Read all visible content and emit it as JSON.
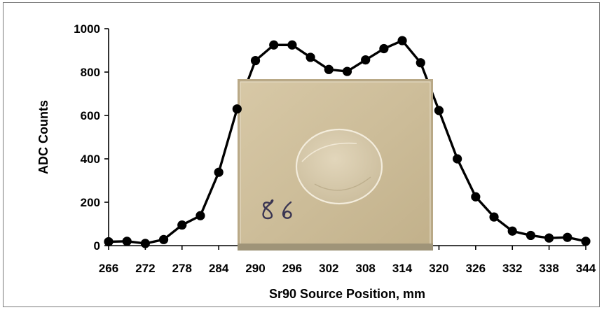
{
  "chart_data": {
    "type": "line",
    "xlabel": "Sr90 Source Position, mm",
    "ylabel": "ADC Counts",
    "xlim": [
      266,
      344
    ],
    "ylim": [
      0,
      1000
    ],
    "x_ticks": [
      266,
      272,
      278,
      284,
      290,
      296,
      302,
      308,
      314,
      320,
      326,
      332,
      338,
      344
    ],
    "y_ticks": [
      0,
      200,
      400,
      600,
      800,
      1000
    ],
    "grid": false,
    "legend": "none",
    "marker": "circle",
    "line_color": "#000000",
    "series": [
      {
        "x": [
          266,
          269,
          272,
          275,
          278,
          281,
          284,
          287,
          290,
          293,
          296,
          299,
          302,
          305,
          308,
          311,
          314,
          317,
          320,
          323,
          326,
          329,
          332,
          335,
          338,
          341,
          344
        ],
        "values": [
          18,
          20,
          10,
          28,
          95,
          138,
          338,
          630,
          853,
          925,
          925,
          868,
          812,
          803,
          856,
          908,
          945,
          843,
          623,
          400,
          225,
          132,
          67,
          47,
          35,
          38,
          20
        ]
      }
    ],
    "inset_image": {
      "description": "sample-photo",
      "handwritten_label": "86"
    }
  }
}
